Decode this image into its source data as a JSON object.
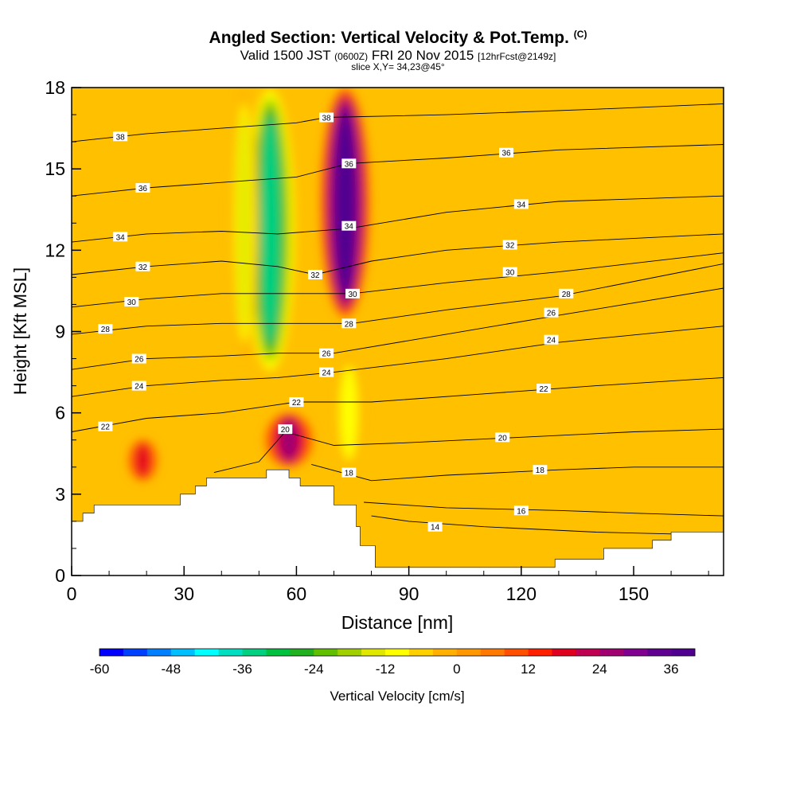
{
  "header": {
    "title": "Angled Section: Vertical Velocity & Pot.Temp.",
    "title_unit": "(C)",
    "valid_prefix": "Valid 1500 JST",
    "valid_utc": "(0600Z)",
    "valid_date": "FRI 20 Nov 2015",
    "forecast_tag": "[12hrFcst@2149z]",
    "slice": "slice X,Y= 34,23@45°"
  },
  "chart_data": {
    "type": "heatmap",
    "xlabel": "Distance [nm]",
    "ylabel": "Height [Kft MSL]",
    "xlim": [
      0,
      174
    ],
    "ylim": [
      0,
      18
    ],
    "x_ticks": [
      0,
      30,
      60,
      90,
      120,
      150
    ],
    "y_ticks": [
      0,
      3,
      6,
      9,
      12,
      15,
      18
    ],
    "colorbar": {
      "label": "Vertical Velocity [cm/s]",
      "min": -60,
      "max": 40,
      "step": 4,
      "tick_values": [
        -60,
        -48,
        -36,
        -24,
        -12,
        0,
        12,
        24,
        36
      ],
      "colors": [
        "#0000ff",
        "#0040ff",
        "#0080ff",
        "#00bfff",
        "#00ffff",
        "#00e0c0",
        "#00d080",
        "#00c040",
        "#20b020",
        "#60c000",
        "#a0d000",
        "#e0e800",
        "#ffff00",
        "#ffd000",
        "#ffb000",
        "#ff9800",
        "#ff7800",
        "#ff5000",
        "#ff2000",
        "#e00020",
        "#c00050",
        "#a00070",
        "#800090",
        "#600090",
        "#500090"
      ]
    },
    "velocity_features": [
      {
        "kind": "downdraft",
        "x": 53,
        "y_range": [
          7.5,
          18
        ],
        "peak_cm_s": -36
      },
      {
        "kind": "downdraft",
        "x": 46,
        "y_range": [
          8,
          18
        ],
        "peak_cm_s": -16
      },
      {
        "kind": "updraft",
        "x": 73,
        "y_range": [
          9.5,
          18
        ],
        "peak_cm_s": 40
      },
      {
        "kind": "updraft",
        "x": 58,
        "y_range": [
          4,
          6
        ],
        "peak_cm_s": 24
      },
      {
        "kind": "updraft",
        "x": 19,
        "y_range": [
          3.5,
          5
        ],
        "peak_cm_s": 18
      },
      {
        "kind": "downdraft",
        "x": 74,
        "y_range": [
          4,
          8
        ],
        "peak_cm_s": -12
      }
    ],
    "theta_contours": [
      {
        "level": 14,
        "labels": [
          [
            97,
            1.8
          ]
        ],
        "path": [
          [
            80,
            2.2
          ],
          [
            90,
            2.0
          ],
          [
            110,
            1.8
          ],
          [
            140,
            1.6
          ],
          [
            170,
            1.5
          ]
        ]
      },
      {
        "level": 16,
        "labels": [
          [
            120,
            2.4
          ]
        ],
        "path": [
          [
            78,
            2.7
          ],
          [
            100,
            2.5
          ],
          [
            130,
            2.4
          ],
          [
            150,
            2.3
          ],
          [
            174,
            2.2
          ]
        ]
      },
      {
        "level": 18,
        "labels": [
          [
            74,
            3.8
          ],
          [
            125,
            3.9
          ]
        ],
        "path": [
          [
            64,
            4.1
          ],
          [
            80,
            3.5
          ],
          [
            100,
            3.7
          ],
          [
            130,
            3.9
          ],
          [
            150,
            4.0
          ],
          [
            174,
            4.0
          ]
        ]
      },
      {
        "level": 20,
        "labels": [
          [
            57,
            5.4
          ],
          [
            115,
            5.1
          ]
        ],
        "path": [
          [
            38,
            3.8
          ],
          [
            50,
            4.2
          ],
          [
            57,
            5.3
          ],
          [
            70,
            4.8
          ],
          [
            90,
            4.9
          ],
          [
            120,
            5.1
          ],
          [
            150,
            5.3
          ],
          [
            174,
            5.4
          ]
        ]
      },
      {
        "level": 22,
        "labels": [
          [
            9,
            5.5
          ],
          [
            60,
            6.4
          ],
          [
            126,
            6.9
          ]
        ],
        "path": [
          [
            0,
            5.3
          ],
          [
            20,
            5.8
          ],
          [
            40,
            6.0
          ],
          [
            60,
            6.4
          ],
          [
            80,
            6.4
          ],
          [
            110,
            6.7
          ],
          [
            140,
            7.0
          ],
          [
            174,
            7.3
          ]
        ]
      },
      {
        "level": 24,
        "labels": [
          [
            18,
            7.0
          ],
          [
            68,
            7.5
          ],
          [
            128,
            8.7
          ]
        ],
        "path": [
          [
            0,
            6.6
          ],
          [
            20,
            7.0
          ],
          [
            40,
            7.2
          ],
          [
            55,
            7.3
          ],
          [
            70,
            7.5
          ],
          [
            100,
            8.0
          ],
          [
            130,
            8.6
          ],
          [
            174,
            9.2
          ]
        ]
      },
      {
        "level": 26,
        "labels": [
          [
            18,
            8.0
          ],
          [
            68,
            8.2
          ],
          [
            128,
            9.7
          ]
        ],
        "path": [
          [
            0,
            7.6
          ],
          [
            20,
            8.0
          ],
          [
            40,
            8.1
          ],
          [
            55,
            8.2
          ],
          [
            70,
            8.2
          ],
          [
            100,
            8.9
          ],
          [
            130,
            9.6
          ],
          [
            174,
            10.6
          ]
        ]
      },
      {
        "level": 28,
        "labels": [
          [
            9,
            9.1
          ],
          [
            74,
            9.3
          ],
          [
            132,
            10.4
          ]
        ],
        "path": [
          [
            0,
            8.9
          ],
          [
            20,
            9.2
          ],
          [
            40,
            9.3
          ],
          [
            55,
            9.3
          ],
          [
            75,
            9.3
          ],
          [
            100,
            9.8
          ],
          [
            130,
            10.3
          ],
          [
            174,
            11.5
          ]
        ]
      },
      {
        "level": 30,
        "labels": [
          [
            16,
            10.1
          ],
          [
            75,
            10.4
          ],
          [
            117,
            11.2
          ]
        ],
        "path": [
          [
            0,
            9.9
          ],
          [
            20,
            10.2
          ],
          [
            40,
            10.4
          ],
          [
            55,
            10.4
          ],
          [
            75,
            10.4
          ],
          [
            100,
            10.8
          ],
          [
            130,
            11.2
          ],
          [
            174,
            11.9
          ]
        ]
      },
      {
        "level": 32,
        "labels": [
          [
            19,
            11.4
          ],
          [
            65,
            11.1
          ],
          [
            117,
            12.2
          ]
        ],
        "path": [
          [
            0,
            11.1
          ],
          [
            20,
            11.4
          ],
          [
            40,
            11.6
          ],
          [
            55,
            11.4
          ],
          [
            65,
            11.1
          ],
          [
            80,
            11.6
          ],
          [
            100,
            12.0
          ],
          [
            130,
            12.3
          ],
          [
            174,
            12.6
          ]
        ]
      },
      {
        "level": 34,
        "labels": [
          [
            13,
            12.5
          ],
          [
            74,
            12.9
          ],
          [
            120,
            13.7
          ]
        ],
        "path": [
          [
            0,
            12.3
          ],
          [
            20,
            12.6
          ],
          [
            40,
            12.7
          ],
          [
            55,
            12.6
          ],
          [
            74,
            12.8
          ],
          [
            100,
            13.4
          ],
          [
            130,
            13.8
          ],
          [
            174,
            14.0
          ]
        ]
      },
      {
        "level": 36,
        "labels": [
          [
            19,
            14.3
          ],
          [
            74,
            15.2
          ],
          [
            116,
            15.6
          ]
        ],
        "path": [
          [
            0,
            14.0
          ],
          [
            20,
            14.3
          ],
          [
            40,
            14.5
          ],
          [
            60,
            14.7
          ],
          [
            74,
            15.2
          ],
          [
            100,
            15.4
          ],
          [
            130,
            15.7
          ],
          [
            174,
            15.9
          ]
        ]
      },
      {
        "level": 38,
        "labels": [
          [
            13,
            16.2
          ],
          [
            68,
            16.9
          ]
        ],
        "path": [
          [
            0,
            16.0
          ],
          [
            20,
            16.3
          ],
          [
            40,
            16.5
          ],
          [
            60,
            16.7
          ],
          [
            68,
            16.9
          ],
          [
            100,
            17.0
          ],
          [
            140,
            17.2
          ],
          [
            174,
            17.4
          ]
        ]
      }
    ],
    "terrain": [
      [
        0,
        2.0
      ],
      [
        3,
        2.0
      ],
      [
        3,
        2.3
      ],
      [
        6,
        2.3
      ],
      [
        6,
        2.6
      ],
      [
        8,
        2.6
      ],
      [
        8,
        2.6
      ],
      [
        29,
        2.6
      ],
      [
        29,
        3.0
      ],
      [
        33,
        3.0
      ],
      [
        33,
        3.3
      ],
      [
        36,
        3.3
      ],
      [
        36,
        3.6
      ],
      [
        52,
        3.6
      ],
      [
        52,
        3.9
      ],
      [
        58,
        3.9
      ],
      [
        58,
        3.6
      ],
      [
        61,
        3.6
      ],
      [
        61,
        3.3
      ],
      [
        70,
        3.3
      ],
      [
        70,
        2.6
      ],
      [
        76,
        2.6
      ],
      [
        76,
        1.8
      ],
      [
        77,
        1.8
      ],
      [
        77,
        1.1
      ],
      [
        81,
        1.1
      ],
      [
        81,
        0.3
      ],
      [
        129,
        0.3
      ],
      [
        129,
        0.6
      ],
      [
        142,
        0.6
      ],
      [
        142,
        1.0
      ],
      [
        155,
        1.0
      ],
      [
        155,
        1.3
      ],
      [
        160,
        1.3
      ],
      [
        160,
        1.6
      ],
      [
        174,
        1.6
      ],
      [
        174,
        0
      ],
      [
        0,
        0
      ]
    ]
  }
}
